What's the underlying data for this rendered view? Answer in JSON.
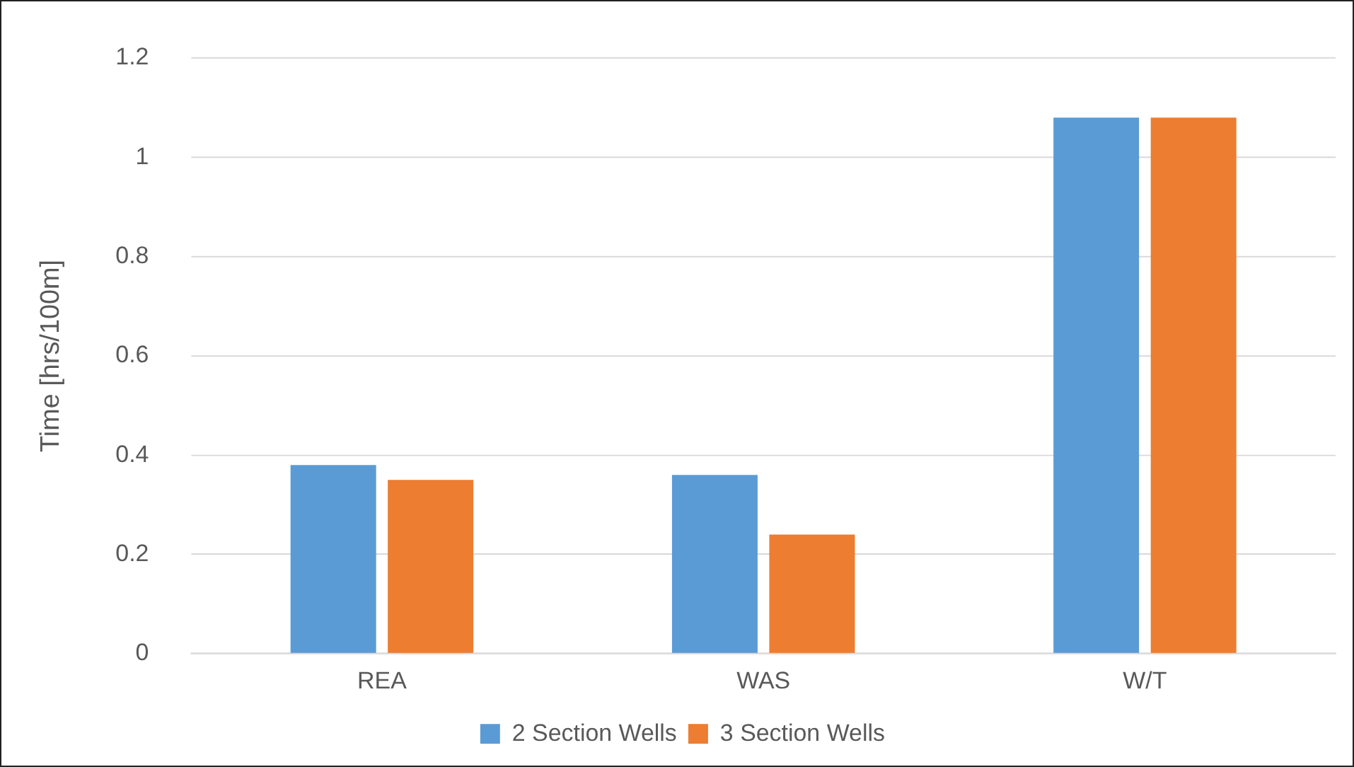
{
  "chart_data": {
    "type": "bar",
    "ylabel": "Time [hrs/100m]",
    "categories": [
      "REA",
      "WAS",
      "W/T"
    ],
    "series": [
      {
        "name": "2 Section Wells",
        "color": "#5b9bd5",
        "values": [
          0.38,
          0.36,
          1.08
        ]
      },
      {
        "name": "3 Section Wells",
        "color": "#ed7d31",
        "values": [
          0.35,
          0.24,
          1.08
        ]
      }
    ],
    "ylim": [
      0,
      1.2
    ],
    "yticks": [
      0,
      0.2,
      0.4,
      0.6,
      0.8,
      1,
      1.2
    ],
    "grid": "y",
    "legend": "bottom"
  }
}
